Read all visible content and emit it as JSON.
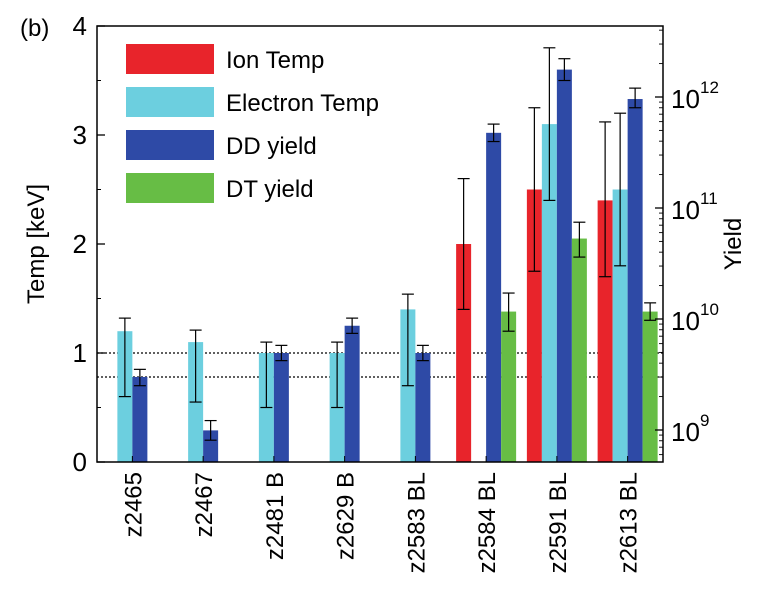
{
  "chart_data": {
    "type": "bar",
    "panel_label": "(b)",
    "categories": [
      "z2465",
      "z2467",
      "z2481 B",
      "z2629 B",
      "z2583 BL",
      "z2584 BL",
      "z2591 BL",
      "z2613 BL"
    ],
    "ylabel": "Temp [keV]",
    "ylim": [
      0,
      4
    ],
    "yticks": [
      "0",
      "1",
      "2",
      "3",
      "4"
    ],
    "y2label": "Yield",
    "y2_scale": "log",
    "y2ticks": [
      {
        "base": "10",
        "exp": "9",
        "value": 1000000000.0
      },
      {
        "base": "10",
        "exp": "10",
        "value": 10000000000.0
      },
      {
        "base": "10",
        "exp": "11",
        "value": 100000000000.0
      },
      {
        "base": "10",
        "exp": "12",
        "value": 1000000000000.0
      }
    ],
    "reference_lines": [
      1.0,
      0.78
    ],
    "legend_position": "top-left",
    "series": [
      {
        "name": "Ion Temp",
        "color": "#e8242b",
        "axis": "left",
        "values": [
          null,
          null,
          null,
          null,
          null,
          2.0,
          2.5,
          2.4
        ],
        "err_low": [
          null,
          null,
          null,
          null,
          null,
          1.4,
          1.75,
          1.7
        ],
        "err_high": [
          null,
          null,
          null,
          null,
          null,
          2.6,
          3.25,
          3.12
        ]
      },
      {
        "name": "Electron Temp",
        "color": "#6ccfdf",
        "axis": "left",
        "values": [
          1.2,
          1.1,
          1.0,
          1.0,
          1.4,
          null,
          3.1,
          2.5
        ],
        "err_low": [
          0.6,
          0.55,
          0.5,
          0.5,
          0.7,
          null,
          2.4,
          1.8
        ],
        "err_high": [
          1.32,
          1.21,
          1.1,
          1.1,
          1.54,
          null,
          3.8,
          3.2
        ]
      },
      {
        "name": "DD yield",
        "color": "#2e4aa6",
        "axis": "left",
        "values": [
          0.78,
          0.29,
          1.0,
          1.25,
          1.0,
          3.02,
          3.6,
          3.33
        ],
        "err_low": [
          0.7,
          0.2,
          0.93,
          1.18,
          0.93,
          2.94,
          3.5,
          3.25
        ],
        "err_high": [
          0.85,
          0.38,
          1.07,
          1.32,
          1.07,
          3.1,
          3.7,
          3.43
        ]
      },
      {
        "name": "DT yield",
        "color": "#67bd45",
        "axis": "left",
        "values": [
          null,
          null,
          null,
          null,
          null,
          1.38,
          2.05,
          1.38
        ],
        "err_low": [
          null,
          null,
          null,
          null,
          null,
          1.2,
          1.88,
          1.3
        ],
        "err_high": [
          null,
          null,
          null,
          null,
          null,
          1.55,
          2.2,
          1.46
        ]
      }
    ]
  }
}
